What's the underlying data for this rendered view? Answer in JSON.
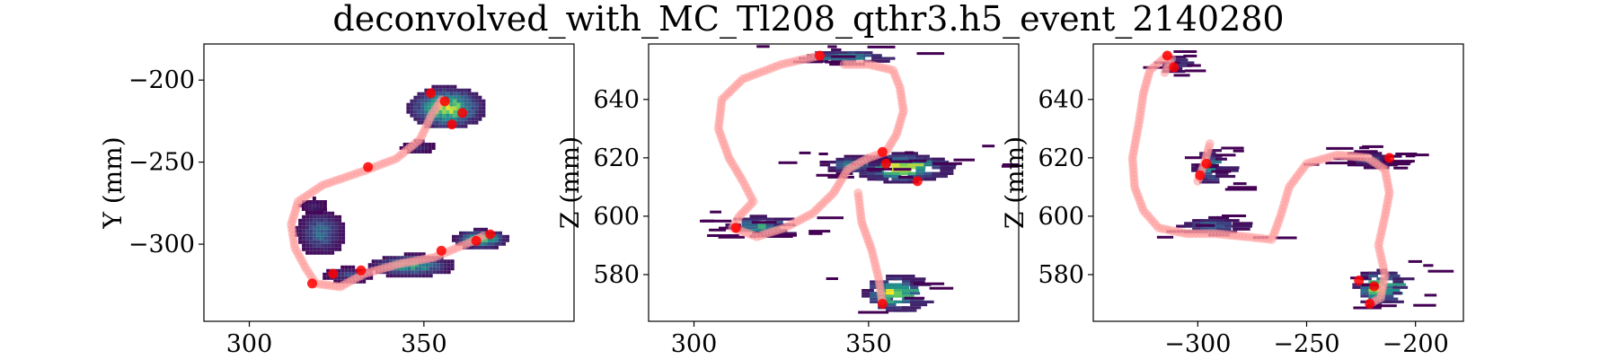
{
  "figure_title": "deconvolved_with_MC_Tl208_qthr3.h5_event_2140280",
  "colors": {
    "track": "#ff9a9a",
    "peaks": "#ff0000",
    "cmap": [
      "#440154",
      "#3b528b",
      "#21918c",
      "#5ec962",
      "#fde725"
    ]
  },
  "chart_data": [
    {
      "type": "heatmap",
      "panel": "XY projection",
      "xlabel": "",
      "ylabel": "Y (mm)",
      "xlim": [
        287,
        393
      ],
      "ylim": [
        -347,
        -178
      ],
      "xticks": [
        {
          "v": 300,
          "label": "300"
        },
        {
          "v": 350,
          "label": "350"
        }
      ],
      "yticks": [
        {
          "v": -200,
          "label": "−200"
        },
        {
          "v": -250,
          "label": "−250"
        },
        {
          "v": -300,
          "label": "−300"
        }
      ],
      "blobs": [
        {
          "cx": 356,
          "cy": -216,
          "rx": 11,
          "ry": 13,
          "peak": 0.85
        },
        {
          "cx": 348,
          "cy": -240,
          "rx": 5,
          "ry": 4,
          "peak": 0.15
        },
        {
          "cx": 320,
          "cy": -292,
          "rx": 7,
          "ry": 14,
          "peak": 0.35
        },
        {
          "cx": 318,
          "cy": -276,
          "rx": 4,
          "ry": 5,
          "peak": 0.1
        },
        {
          "cx": 346,
          "cy": -312,
          "rx": 12,
          "ry": 7,
          "peak": 0.55
        },
        {
          "cx": 366,
          "cy": -296,
          "rx": 8,
          "ry": 6,
          "peak": 0.7
        },
        {
          "cx": 328,
          "cy": -318,
          "rx": 7,
          "ry": 5,
          "peak": 0.2
        }
      ],
      "track": [
        [
          355,
          -212
        ],
        [
          352,
          -222
        ],
        [
          349,
          -236
        ],
        [
          342,
          -248
        ],
        [
          332,
          -256
        ],
        [
          321,
          -264
        ],
        [
          314,
          -274
        ],
        [
          312,
          -288
        ],
        [
          313,
          -302
        ],
        [
          316,
          -314
        ],
        [
          319,
          -324
        ],
        [
          326,
          -326
        ],
        [
          333,
          -318
        ],
        [
          343,
          -312
        ],
        [
          353,
          -308
        ],
        [
          362,
          -300
        ],
        [
          368,
          -294
        ]
      ],
      "peaks": [
        [
          356,
          -213
        ],
        [
          361,
          -220
        ],
        [
          352,
          -208
        ],
        [
          358,
          -227
        ],
        [
          334,
          -253
        ],
        [
          324,
          -318
        ],
        [
          332,
          -316
        ],
        [
          355,
          -304
        ],
        [
          365,
          -298
        ],
        [
          369,
          -294
        ],
        [
          318,
          -324
        ]
      ]
    },
    {
      "type": "heatmap",
      "panel": "XZ projection",
      "xlabel": "",
      "ylabel": "Z (mm)",
      "xlim": [
        287,
        393
      ],
      "ylim": [
        564,
        659
      ],
      "xticks": [
        {
          "v": 300,
          "label": "300"
        },
        {
          "v": 350,
          "label": "350"
        }
      ],
      "yticks": [
        {
          "v": 580,
          "label": "580"
        },
        {
          "v": 600,
          "label": "600"
        },
        {
          "v": 620,
          "label": "620"
        },
        {
          "v": 640,
          "label": "640"
        }
      ],
      "blobs": [
        {
          "cx": 342,
          "cy": 655,
          "rx": 12,
          "ry": 2.5,
          "peak": 0.5
        },
        {
          "cx": 358,
          "cy": 617,
          "rx": 13,
          "ry": 5,
          "peak": 0.95
        },
        {
          "cx": 317,
          "cy": 597,
          "rx": 8,
          "ry": 3.5,
          "peak": 0.55
        },
        {
          "cx": 356,
          "cy": 574,
          "rx": 8,
          "ry": 6,
          "peak": 0.9
        },
        {
          "cx": 344,
          "cy": 618,
          "rx": 8,
          "ry": 3,
          "peak": 0.4
        }
      ],
      "track": [
        [
          336,
          655
        ],
        [
          325,
          652
        ],
        [
          314,
          647
        ],
        [
          308,
          640
        ],
        [
          307,
          630
        ],
        [
          310,
          620
        ],
        [
          314,
          612
        ],
        [
          317,
          605
        ],
        [
          313,
          600
        ],
        [
          311,
          596
        ],
        [
          318,
          593
        ],
        [
          326,
          596
        ],
        [
          334,
          601
        ],
        [
          340,
          608
        ],
        [
          344,
          616
        ],
        [
          350,
          620
        ],
        [
          355,
          622
        ],
        [
          358,
          628
        ],
        [
          360,
          636
        ],
        [
          359,
          644
        ],
        [
          357,
          650
        ],
        [
          350,
          652
        ],
        [
          342,
          652
        ],
        [
          347,
          608
        ],
        [
          348,
          598
        ],
        [
          351,
          588
        ],
        [
          353,
          578
        ],
        [
          354,
          570
        ]
      ],
      "peaks": [
        [
          336,
          655
        ],
        [
          354,
          622
        ],
        [
          355,
          618
        ],
        [
          364,
          612
        ],
        [
          312,
          596
        ],
        [
          354,
          570
        ]
      ]
    },
    {
      "type": "heatmap",
      "panel": "YZ projection",
      "xlabel": "",
      "ylabel": "Z (mm)",
      "xlim": [
        -348,
        -178
      ],
      "ylim": [
        564,
        659
      ],
      "xticks": [
        {
          "v": -300,
          "label": "−300"
        },
        {
          "v": -250,
          "label": "−250"
        },
        {
          "v": -200,
          "label": "−200"
        }
      ],
      "yticks": [
        {
          "v": 580,
          "label": "580"
        },
        {
          "v": 600,
          "label": "600"
        },
        {
          "v": 620,
          "label": "620"
        },
        {
          "v": 640,
          "label": "640"
        }
      ],
      "blobs": [
        {
          "cx": -315,
          "cy": 653,
          "rx": 5,
          "ry": 3,
          "peak": 0.3
        },
        {
          "cx": -297,
          "cy": 617,
          "rx": 6,
          "ry": 6,
          "peak": 0.5
        },
        {
          "cx": -223,
          "cy": 620,
          "rx": 12,
          "ry": 3,
          "peak": 0.2
        },
        {
          "cx": -296,
          "cy": 597,
          "rx": 14,
          "ry": 3,
          "peak": 0.35
        },
        {
          "cx": -219,
          "cy": 576,
          "rx": 10,
          "ry": 6,
          "peak": 0.85
        }
      ],
      "track": [
        [
          -314,
          655
        ],
        [
          -322,
          650
        ],
        [
          -325,
          642
        ],
        [
          -327,
          632
        ],
        [
          -330,
          620
        ],
        [
          -329,
          610
        ],
        [
          -325,
          602
        ],
        [
          -318,
          596
        ],
        [
          -305,
          594
        ],
        [
          -292,
          594
        ],
        [
          -278,
          593
        ],
        [
          -266,
          592
        ],
        [
          -262,
          600
        ],
        [
          -258,
          610
        ],
        [
          -250,
          618
        ],
        [
          -236,
          621
        ],
        [
          -222,
          620
        ],
        [
          -214,
          616
        ],
        [
          -212,
          608
        ],
        [
          -214,
          600
        ],
        [
          -217,
          590
        ],
        [
          -214,
          580
        ],
        [
          -216,
          572
        ],
        [
          -221,
          570
        ],
        [
          -300,
          612
        ],
        [
          -297,
          618
        ],
        [
          -294,
          626
        ],
        [
          -312,
          654
        ],
        [
          -316,
          648
        ]
      ],
      "peaks": [
        [
          -314,
          655
        ],
        [
          -311,
          651
        ],
        [
          -299,
          614
        ],
        [
          -296,
          618
        ],
        [
          -212,
          620
        ],
        [
          -219,
          576
        ],
        [
          -221,
          570
        ],
        [
          -226,
          578
        ]
      ]
    }
  ]
}
